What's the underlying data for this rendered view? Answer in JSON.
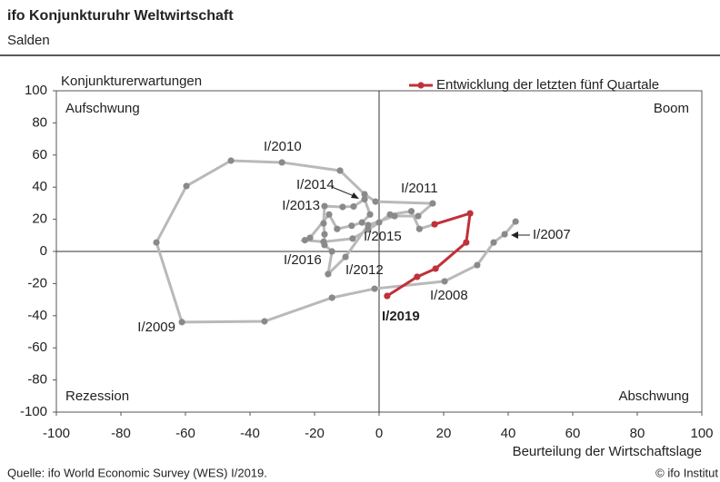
{
  "header": {
    "title": "ifo Konjunkturuhr Weltwirtschaft",
    "subtitle": "Salden"
  },
  "chart_data": {
    "type": "line",
    "ylabel": "Konjunkturerwartungen",
    "xlabel": "Beurteilung der Wirtschaftslage",
    "quadrants": [
      "Aufschwung",
      "Boom",
      "Rezession",
      "Abschwung"
    ],
    "xlim": [
      -100,
      100
    ],
    "xticks": [
      -100,
      -80,
      -60,
      -40,
      -20,
      0,
      20,
      40,
      60,
      80,
      100
    ],
    "ylim": [
      -100,
      100
    ],
    "yticks": [
      -100,
      -80,
      -60,
      -40,
      -20,
      0,
      20,
      40,
      60,
      80,
      100
    ],
    "legend": "top-right",
    "series": [
      {
        "color": "#b9b9b9",
        "marker_color": "#8a8a8a",
        "x": [
          42.3,
          38.9,
          35.5,
          30.4,
          20.3,
          -1.4,
          -14.6,
          -35.5,
          -61.1,
          -69,
          -59.7,
          -45.9,
          -30.1,
          -12.1,
          -4.5,
          -1.1,
          16.6,
          12.1,
          4.8,
          -3.4,
          -10.4,
          -15.8,
          -14.6,
          -16.9,
          -16.9,
          -17.2,
          -16.9,
          -11.3,
          -7.9,
          -4.5,
          -2.8,
          -5.3,
          -8.5,
          -13,
          -15.5,
          -21.4,
          -23,
          -17.2,
          -8.2,
          -3.4,
          0,
          3.4,
          10,
          12.5,
          17.2
        ],
        "values": [
          18.6,
          10.7,
          5.6,
          -8.5,
          -18.6,
          -23.2,
          -28.8,
          -43.5,
          -44,
          5.6,
          40.7,
          56.5,
          55.4,
          50.3,
          35.6,
          31,
          29.9,
          22,
          22,
          16.4,
          -3.4,
          -14.1,
          0,
          4,
          10.7,
          17.5,
          28.2,
          27.7,
          28,
          32.5,
          23,
          18,
          16,
          14,
          23,
          8.5,
          7,
          6,
          8,
          13.6,
          18,
          23,
          25,
          14,
          16.9
        ]
      },
      {
        "name": "Entwicklung der letzten fünf Quartale",
        "color": "#c0313a",
        "x": [
          17.2,
          28.2,
          27,
          17.5,
          11.8,
          2.5
        ],
        "values": [
          16.9,
          23.7,
          5.6,
          -10.7,
          -15.8,
          -27.7
        ]
      }
    ],
    "annotations": [
      "I/2007",
      "I/2008",
      "I/2009",
      "I/2010",
      "I/2011",
      "I/2012",
      "I/2013",
      "I/2014",
      "I/2015",
      "I/2016",
      "I/2019"
    ]
  },
  "footer": {
    "source": "Quelle: ifo World Economic Survey (WES) I/2019.",
    "copyright": "© ifo Institut"
  }
}
